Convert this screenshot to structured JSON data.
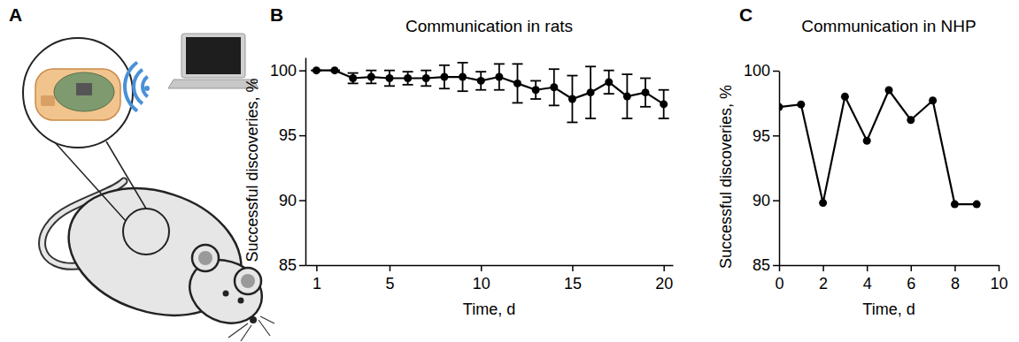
{
  "illustration": {
    "panel": "A"
  },
  "chart_data": [
    {
      "panel": "B",
      "type": "line",
      "title": "Communication in rats",
      "x_label": "Time, d",
      "y_label": "Successful discoveries, %",
      "x": [
        1,
        2,
        3,
        4,
        5,
        6,
        7,
        8,
        9,
        10,
        11,
        12,
        13,
        14,
        15,
        16,
        17,
        18,
        19,
        20
      ],
      "values": [
        100,
        100,
        99.4,
        99.5,
        99.4,
        99.4,
        99.4,
        99.5,
        99.5,
        99.2,
        99.5,
        99.0,
        98.5,
        98.7,
        97.8,
        98.3,
        99.1,
        98.0,
        98.3,
        97.4
      ],
      "errors": [
        0,
        0,
        0.4,
        0.5,
        0.6,
        0.5,
        0.6,
        0.9,
        1.1,
        0.7,
        1.0,
        1.5,
        0.7,
        1.4,
        1.8,
        2.0,
        0.9,
        1.7,
        1.1,
        1.1
      ],
      "color": "#000000",
      "marker": "circle",
      "xlim": [
        0.4,
        20.5
      ],
      "xticks": [
        1,
        5,
        10,
        15,
        20
      ],
      "ylim": [
        85,
        101
      ],
      "yticks": [
        85,
        90,
        95,
        100
      ],
      "grid": false
    },
    {
      "panel": "C",
      "type": "line",
      "title": "Communication in NHP",
      "x_label": "Time, d",
      "y_label": "Successful discoveries, %",
      "x": [
        0,
        1,
        2,
        3,
        4,
        5,
        6,
        7,
        8,
        9
      ],
      "values": [
        97.2,
        97.4,
        89.8,
        98.0,
        94.6,
        98.5,
        96.2,
        97.7,
        89.7,
        89.7
      ],
      "color": "#000000",
      "marker": "circle",
      "xlim": [
        0,
        10
      ],
      "xticks": [
        0,
        2,
        4,
        6,
        8,
        10
      ],
      "ylim": [
        85,
        100
      ],
      "yticks": [
        85,
        90,
        95,
        100
      ],
      "grid": false
    }
  ]
}
